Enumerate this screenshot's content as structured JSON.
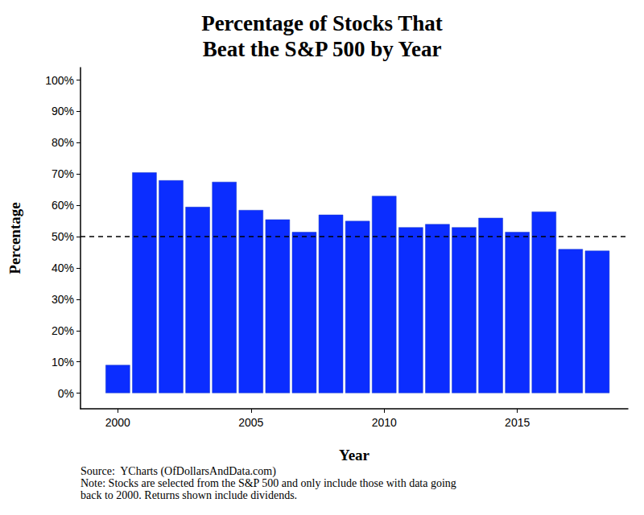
{
  "chart_data": {
    "type": "bar",
    "title": "Percentage of Stocks That\nBeat the S&P 500 by Year",
    "x_label": "Year",
    "y_label": "Percentage",
    "x": [
      2000,
      2001,
      2002,
      2003,
      2004,
      2005,
      2006,
      2007,
      2008,
      2009,
      2010,
      2011,
      2012,
      2013,
      2014,
      2015,
      2016,
      2017,
      2018
    ],
    "values": [
      9,
      70.5,
      68,
      59.5,
      67.5,
      58.5,
      55.5,
      51.5,
      57,
      55,
      63,
      53,
      54,
      53,
      56,
      51.5,
      58,
      46,
      45.5
    ],
    "color": "#0b2dff",
    "xlim": [
      1998.6,
      2019.15
    ],
    "xticks": [
      2000,
      2005,
      2010,
      2015
    ],
    "ylim": [
      -5,
      104
    ],
    "yticks": [
      {
        "value": 0,
        "label": "0%"
      },
      {
        "value": 10,
        "label": "10%"
      },
      {
        "value": 20,
        "label": "20%"
      },
      {
        "value": 30,
        "label": "30%"
      },
      {
        "value": 40,
        "label": "40%"
      },
      {
        "value": 50,
        "label": "50%"
      },
      {
        "value": 60,
        "label": "60%"
      },
      {
        "value": 70,
        "label": "70%"
      },
      {
        "value": 80,
        "label": "80%"
      },
      {
        "value": 90,
        "label": "90%"
      },
      {
        "value": 100,
        "label": "100%"
      }
    ],
    "reference_line": 50,
    "grid": false,
    "caption": [
      "Source:  YCharts (OfDollarsAndData.com)",
      "Note: Stocks are selected from the S&P 500 and only include those with data going",
      "back to 2000. Returns shown include dividends."
    ]
  }
}
